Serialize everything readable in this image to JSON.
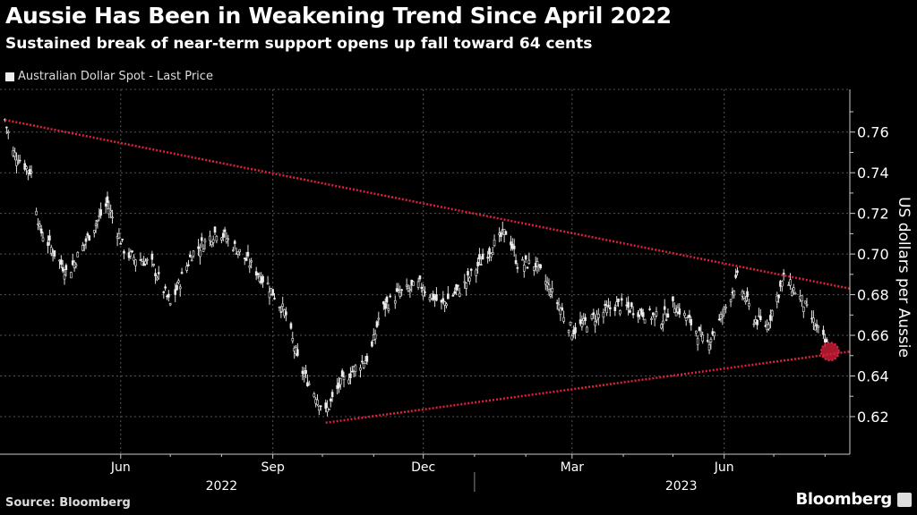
{
  "header": {
    "title": "Aussie Has Been in Weakening Trend Since April 2022",
    "subtitle": "Sustained break of near-term support opens up fall toward 64 cents"
  },
  "footer": {
    "source": "Source: Bloomberg",
    "brand": "Bloomberg"
  },
  "chart_data": {
    "type": "line",
    "title": "Aussie Has Been in Weakening Trend Since April 2022",
    "subtitle": "Sustained break of near-term support opens up fall toward 64 cents",
    "legend": [
      {
        "label": "Australian Dollar Spot - Last Price",
        "color": "#eeeeee"
      }
    ],
    "legend_placement": "top-left",
    "ylabel": "US dollars per Aussie",
    "ylim": [
      0.6015,
      0.781
    ],
    "yticks": [
      "0.62",
      "0.64",
      "0.66",
      "0.68",
      "0.70",
      "0.72",
      "0.74",
      "0.76"
    ],
    "xlim": [
      "2022-03-20",
      "2023-08-16"
    ],
    "xticks": [
      {
        "label": "Jun",
        "date": "2022-06-01"
      },
      {
        "label": "Sep",
        "date": "2022-09-01"
      },
      {
        "label": "Dec",
        "date": "2022-12-01"
      },
      {
        "label": "Mar",
        "date": "2023-03-01"
      },
      {
        "label": "Jun",
        "date": "2023-06-01"
      }
    ],
    "years": [
      {
        "label": "2022",
        "date": "2022-08-01"
      },
      {
        "label": "2023",
        "date": "2023-05-06"
      }
    ],
    "grid": true,
    "series": [
      {
        "name": "Australian Dollar Spot - Last Price",
        "points": [
          [
            "2022-03-23",
            0.766
          ],
          [
            "2022-03-28",
            0.75
          ],
          [
            "2022-04-08",
            0.74
          ],
          [
            "2022-04-13",
            0.712
          ],
          [
            "2022-04-30",
            0.69
          ],
          [
            "2022-05-10",
            0.705
          ],
          [
            "2022-05-24",
            0.725
          ],
          [
            "2022-06-04",
            0.7
          ],
          [
            "2022-06-20",
            0.695
          ],
          [
            "2022-07-01",
            0.675
          ],
          [
            "2022-07-14",
            0.7
          ],
          [
            "2022-07-30",
            0.712
          ],
          [
            "2022-08-13",
            0.7
          ],
          [
            "2022-08-29",
            0.685
          ],
          [
            "2022-09-09",
            0.67
          ],
          [
            "2022-09-17",
            0.645
          ],
          [
            "2022-10-03",
            0.622
          ],
          [
            "2022-10-11",
            0.635
          ],
          [
            "2022-10-22",
            0.645
          ],
          [
            "2022-10-30",
            0.65
          ],
          [
            "2022-11-05",
            0.672
          ],
          [
            "2022-11-15",
            0.68
          ],
          [
            "2022-11-29",
            0.685
          ],
          [
            "2022-12-12",
            0.675
          ],
          [
            "2022-12-26",
            0.685
          ],
          [
            "2023-01-08",
            0.7
          ],
          [
            "2023-01-21",
            0.712
          ],
          [
            "2023-01-27",
            0.695
          ],
          [
            "2023-02-07",
            0.695
          ],
          [
            "2023-02-21",
            0.675
          ],
          [
            "2023-03-01",
            0.662
          ],
          [
            "2023-03-17",
            0.67
          ],
          [
            "2023-03-28",
            0.675
          ],
          [
            "2023-04-10",
            0.672
          ],
          [
            "2023-04-24",
            0.668
          ],
          [
            "2023-05-02",
            0.675
          ],
          [
            "2023-05-13",
            0.665
          ],
          [
            "2023-05-21",
            0.655
          ],
          [
            "2023-05-31",
            0.67
          ],
          [
            "2023-06-09",
            0.688
          ],
          [
            "2023-06-19",
            0.668
          ],
          [
            "2023-06-27",
            0.665
          ],
          [
            "2023-07-07",
            0.688
          ],
          [
            "2023-07-16",
            0.68
          ],
          [
            "2023-07-24",
            0.668
          ],
          [
            "2023-08-02",
            0.655
          ]
        ]
      }
    ],
    "annotations": [
      {
        "type": "trendline",
        "name": "resistance",
        "from": [
          "2022-03-23",
          0.766
        ],
        "to": [
          "2023-08-16",
          0.683
        ],
        "color": "#e0203c"
      },
      {
        "type": "trendline",
        "name": "support",
        "from": [
          "2022-10-03",
          0.617
        ],
        "to": [
          "2023-08-16",
          0.652
        ],
        "color": "#e0203c"
      },
      {
        "type": "circle",
        "name": "break-marker",
        "at": [
          "2023-08-04",
          0.652
        ],
        "color": "#e0203c"
      }
    ]
  }
}
